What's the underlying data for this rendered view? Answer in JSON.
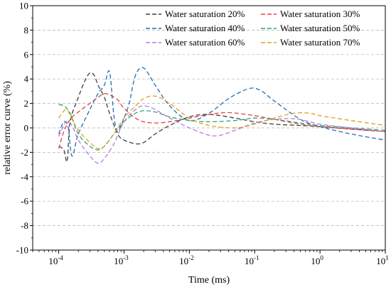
{
  "chart_data": {
    "type": "line",
    "xlabel": "Time (ms)",
    "ylabel": "relative error curve (%)",
    "xscale": "log",
    "xlim": [
      4e-05,
      10
    ],
    "ylim": [
      -10,
      10
    ],
    "xticks": [
      {
        "value": 0.0001,
        "base": "10",
        "exp": "-4"
      },
      {
        "value": 0.001,
        "base": "10",
        "exp": "-3"
      },
      {
        "value": 0.01,
        "base": "10",
        "exp": "-2"
      },
      {
        "value": 0.1,
        "base": "10",
        "exp": "-1"
      },
      {
        "value": 1,
        "base": "10",
        "exp": "0"
      },
      {
        "value": 10,
        "base": "10",
        "exp": "1"
      }
    ],
    "yticks": [
      -10,
      -8,
      -6,
      -4,
      -2,
      0,
      2,
      4,
      6,
      8,
      10
    ],
    "grid": "horizontal dashed",
    "legend_position": "top-right",
    "series": [
      {
        "name": "Water saturation 20%",
        "color": "#404040",
        "points": [
          [
            0.0001,
            -1.5
          ],
          [
            0.00012,
            -1.8
          ],
          [
            0.000135,
            -2.7
          ],
          [
            0.00015,
            0.5
          ],
          [
            0.0002,
            2.5
          ],
          [
            0.00025,
            3.8
          ],
          [
            0.0003,
            4.5
          ],
          [
            0.00035,
            4.3
          ],
          [
            0.0004,
            3.5
          ],
          [
            0.0005,
            2.5
          ],
          [
            0.0006,
            1.2
          ],
          [
            0.0008,
            -0.5
          ],
          [
            0.001,
            -1.0
          ],
          [
            0.0015,
            -1.3
          ],
          [
            0.002,
            -1.2
          ],
          [
            0.003,
            -0.5
          ],
          [
            0.005,
            0.2
          ],
          [
            0.01,
            0.9
          ],
          [
            0.02,
            1.1
          ],
          [
            0.05,
            0.8
          ],
          [
            0.1,
            0.5
          ],
          [
            0.2,
            0.3
          ],
          [
            0.5,
            0.2
          ],
          [
            1,
            0.1
          ],
          [
            3,
            -0.1
          ],
          [
            10,
            -0.3
          ]
        ]
      },
      {
        "name": "Water saturation 30%",
        "color": "#e8403a",
        "points": [
          [
            0.0001,
            -1.7
          ],
          [
            0.00012,
            -0.3
          ],
          [
            0.00015,
            0.7
          ],
          [
            0.0002,
            1.3
          ],
          [
            0.0003,
            2.0
          ],
          [
            0.0004,
            2.5
          ],
          [
            0.0005,
            2.8
          ],
          [
            0.0006,
            2.7
          ],
          [
            0.0008,
            2.3
          ],
          [
            0.001,
            1.6
          ],
          [
            0.0015,
            0.8
          ],
          [
            0.002,
            0.5
          ],
          [
            0.003,
            0.4
          ],
          [
            0.005,
            0.5
          ],
          [
            0.01,
            0.8
          ],
          [
            0.02,
            1.1
          ],
          [
            0.04,
            1.25
          ],
          [
            0.1,
            1.0
          ],
          [
            0.2,
            0.7
          ],
          [
            0.5,
            0.3
          ],
          [
            1,
            0.1
          ],
          [
            3,
            -0.1
          ],
          [
            10,
            -0.3
          ]
        ]
      },
      {
        "name": "Water saturation 40%",
        "color": "#1f6fb5",
        "points": [
          [
            0.0001,
            -0.5
          ],
          [
            0.00012,
            0.5
          ],
          [
            0.00014,
            0.0
          ],
          [
            0.00016,
            -2.3
          ],
          [
            0.0002,
            -0.5
          ],
          [
            0.0003,
            1.5
          ],
          [
            0.0004,
            2.8
          ],
          [
            0.0005,
            3.5
          ],
          [
            0.0006,
            4.6
          ],
          [
            0.0007,
            1.0
          ],
          [
            0.0008,
            -0.3
          ],
          [
            0.001,
            0.8
          ],
          [
            0.0012,
            2.0
          ],
          [
            0.0015,
            4.3
          ],
          [
            0.002,
            4.9
          ],
          [
            0.003,
            3.5
          ],
          [
            0.005,
            1.8
          ],
          [
            0.01,
            0.6
          ],
          [
            0.02,
            1.2
          ],
          [
            0.04,
            2.4
          ],
          [
            0.08,
            3.2
          ],
          [
            0.12,
            3.1
          ],
          [
            0.2,
            2.2
          ],
          [
            0.5,
            0.7
          ],
          [
            1,
            0.1
          ],
          [
            3,
            -0.5
          ],
          [
            10,
            -1.0
          ]
        ]
      },
      {
        "name": "Water saturation 50%",
        "color": "#2ca86a",
        "points": [
          [
            0.0001,
            1.9
          ],
          [
            0.00012,
            1.8
          ],
          [
            0.00015,
            1.2
          ],
          [
            0.0002,
            -0.5
          ],
          [
            0.0003,
            -1.5
          ],
          [
            0.0004,
            -1.8
          ],
          [
            0.0005,
            -1.5
          ],
          [
            0.0007,
            -0.5
          ],
          [
            0.001,
            0.5
          ],
          [
            0.0015,
            1.2
          ],
          [
            0.002,
            1.4
          ],
          [
            0.003,
            1.3
          ],
          [
            0.005,
            0.9
          ],
          [
            0.01,
            0.6
          ],
          [
            0.02,
            0.5
          ],
          [
            0.05,
            0.6
          ],
          [
            0.1,
            0.8
          ],
          [
            0.2,
            0.7
          ],
          [
            0.5,
            0.4
          ],
          [
            1,
            0.2
          ],
          [
            3,
            0.0
          ],
          [
            10,
            -0.2
          ]
        ]
      },
      {
        "name": "Water saturation 60%",
        "color": "#b57ae8",
        "points": [
          [
            0.0001,
            -0.7
          ],
          [
            0.00013,
            0.5
          ],
          [
            0.00016,
            0.2
          ],
          [
            0.0002,
            -1.0
          ],
          [
            0.0003,
            -2.3
          ],
          [
            0.0004,
            -2.9
          ],
          [
            0.0005,
            -2.5
          ],
          [
            0.0007,
            -1.3
          ],
          [
            0.001,
            0.5
          ],
          [
            0.0015,
            1.5
          ],
          [
            0.002,
            1.8
          ],
          [
            0.003,
            1.5
          ],
          [
            0.005,
            0.8
          ],
          [
            0.01,
            0.0
          ],
          [
            0.02,
            -0.6
          ],
          [
            0.03,
            -0.6
          ],
          [
            0.05,
            -0.2
          ],
          [
            0.1,
            0.4
          ],
          [
            0.2,
            0.7
          ],
          [
            0.4,
            0.75
          ],
          [
            0.7,
            0.5
          ],
          [
            1,
            0.3
          ],
          [
            3,
            0.0
          ],
          [
            10,
            -0.3
          ]
        ]
      },
      {
        "name": "Water saturation 70%",
        "color": "#e0a020",
        "points": [
          [
            0.0001,
            0.8
          ],
          [
            0.00013,
            1.5
          ],
          [
            0.00016,
            0.7
          ],
          [
            0.0002,
            -0.2
          ],
          [
            0.0003,
            -1.2
          ],
          [
            0.0004,
            -1.7
          ],
          [
            0.0005,
            -1.5
          ],
          [
            0.0007,
            -0.5
          ],
          [
            0.001,
            0.8
          ],
          [
            0.0015,
            1.8
          ],
          [
            0.002,
            2.4
          ],
          [
            0.003,
            2.6
          ],
          [
            0.005,
            2.0
          ],
          [
            0.01,
            0.8
          ],
          [
            0.02,
            0.2
          ],
          [
            0.05,
            0.0
          ],
          [
            0.1,
            0.3
          ],
          [
            0.2,
            0.8
          ],
          [
            0.4,
            1.2
          ],
          [
            0.7,
            1.2
          ],
          [
            1,
            1.0
          ],
          [
            3,
            0.6
          ],
          [
            10,
            0.2
          ]
        ]
      }
    ]
  }
}
